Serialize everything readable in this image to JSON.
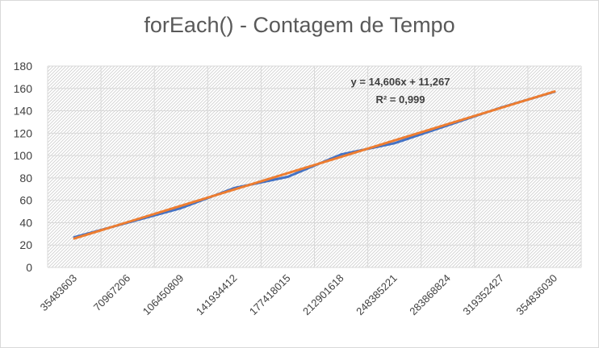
{
  "chart_data": {
    "type": "line",
    "title": "forEach() - Contagem de Tempo",
    "xlabel": "",
    "ylabel": "",
    "categories": [
      "35483603",
      "70967206",
      "106450809",
      "141934412",
      "177418015",
      "212901618",
      "248385221",
      "283868824",
      "319352427",
      "354836030"
    ],
    "ylim": [
      0,
      180
    ],
    "yticks": [
      "0",
      "20",
      "40",
      "60",
      "80",
      "100",
      "120",
      "140",
      "160",
      "180"
    ],
    "grid": true,
    "series": [
      {
        "values": [
          27,
          40,
          53,
          71,
          81,
          101,
          111,
          127,
          143,
          157
        ],
        "color": "#4472c4"
      },
      {
        "trendline": "linear",
        "values": [
          25.9,
          40.5,
          55.1,
          69.7,
          84.3,
          98.9,
          113.5,
          128.1,
          142.7,
          157.3
        ],
        "color": "#ed7d31"
      }
    ],
    "annotation": {
      "equation": "y = 14,606x + 11,267",
      "r2": "R² = 0,999"
    }
  }
}
